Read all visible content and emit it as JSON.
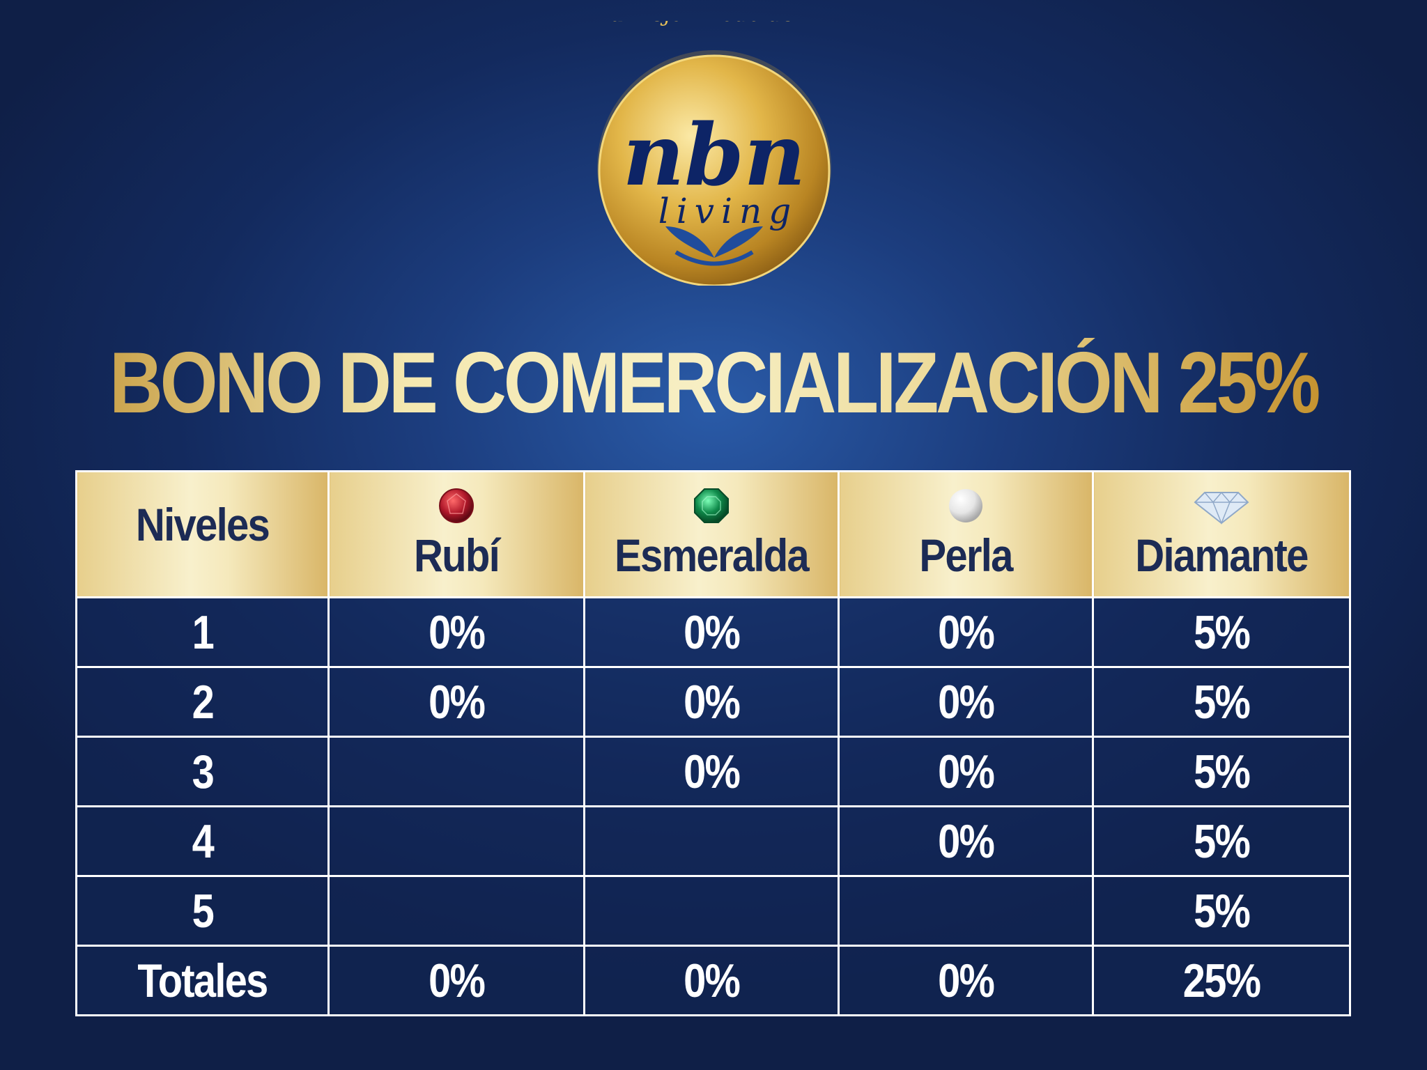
{
  "logo": {
    "tagline": "Tu mejor modo de vivir",
    "brand": "nbn",
    "sub": "living",
    "icon": "leaf-icon"
  },
  "title": "BONO DE COMERCIALIZACIÓN 25%",
  "colors": {
    "gold": "#e0c070",
    "navy": "#132a5e",
    "text_dark": "#1c2b55"
  },
  "table": {
    "header_first": "Niveles",
    "columns": [
      {
        "label": "Rubí",
        "icon": "ruby-gem-icon",
        "color": "#b0182a"
      },
      {
        "label": "Esmeralda",
        "icon": "emerald-gem-icon",
        "color": "#0f8a4a"
      },
      {
        "label": "Perla",
        "icon": "pearl-icon",
        "color": "#f2f2f2"
      },
      {
        "label": "Diamante",
        "icon": "diamond-icon",
        "color": "#cfe2f5"
      }
    ],
    "rows": [
      {
        "level": "1",
        "values": [
          "0%",
          "0%",
          "0%",
          "5%"
        ]
      },
      {
        "level": "2",
        "values": [
          "0%",
          "0%",
          "0%",
          "5%"
        ]
      },
      {
        "level": "3",
        "values": [
          "",
          "0%",
          "0%",
          "5%"
        ]
      },
      {
        "level": "4",
        "values": [
          "",
          "",
          "0%",
          "5%"
        ]
      },
      {
        "level": "5",
        "values": [
          "",
          "",
          "",
          "5%"
        ]
      },
      {
        "level": "Totales",
        "values": [
          "0%",
          "0%",
          "0%",
          "25%"
        ]
      }
    ]
  }
}
